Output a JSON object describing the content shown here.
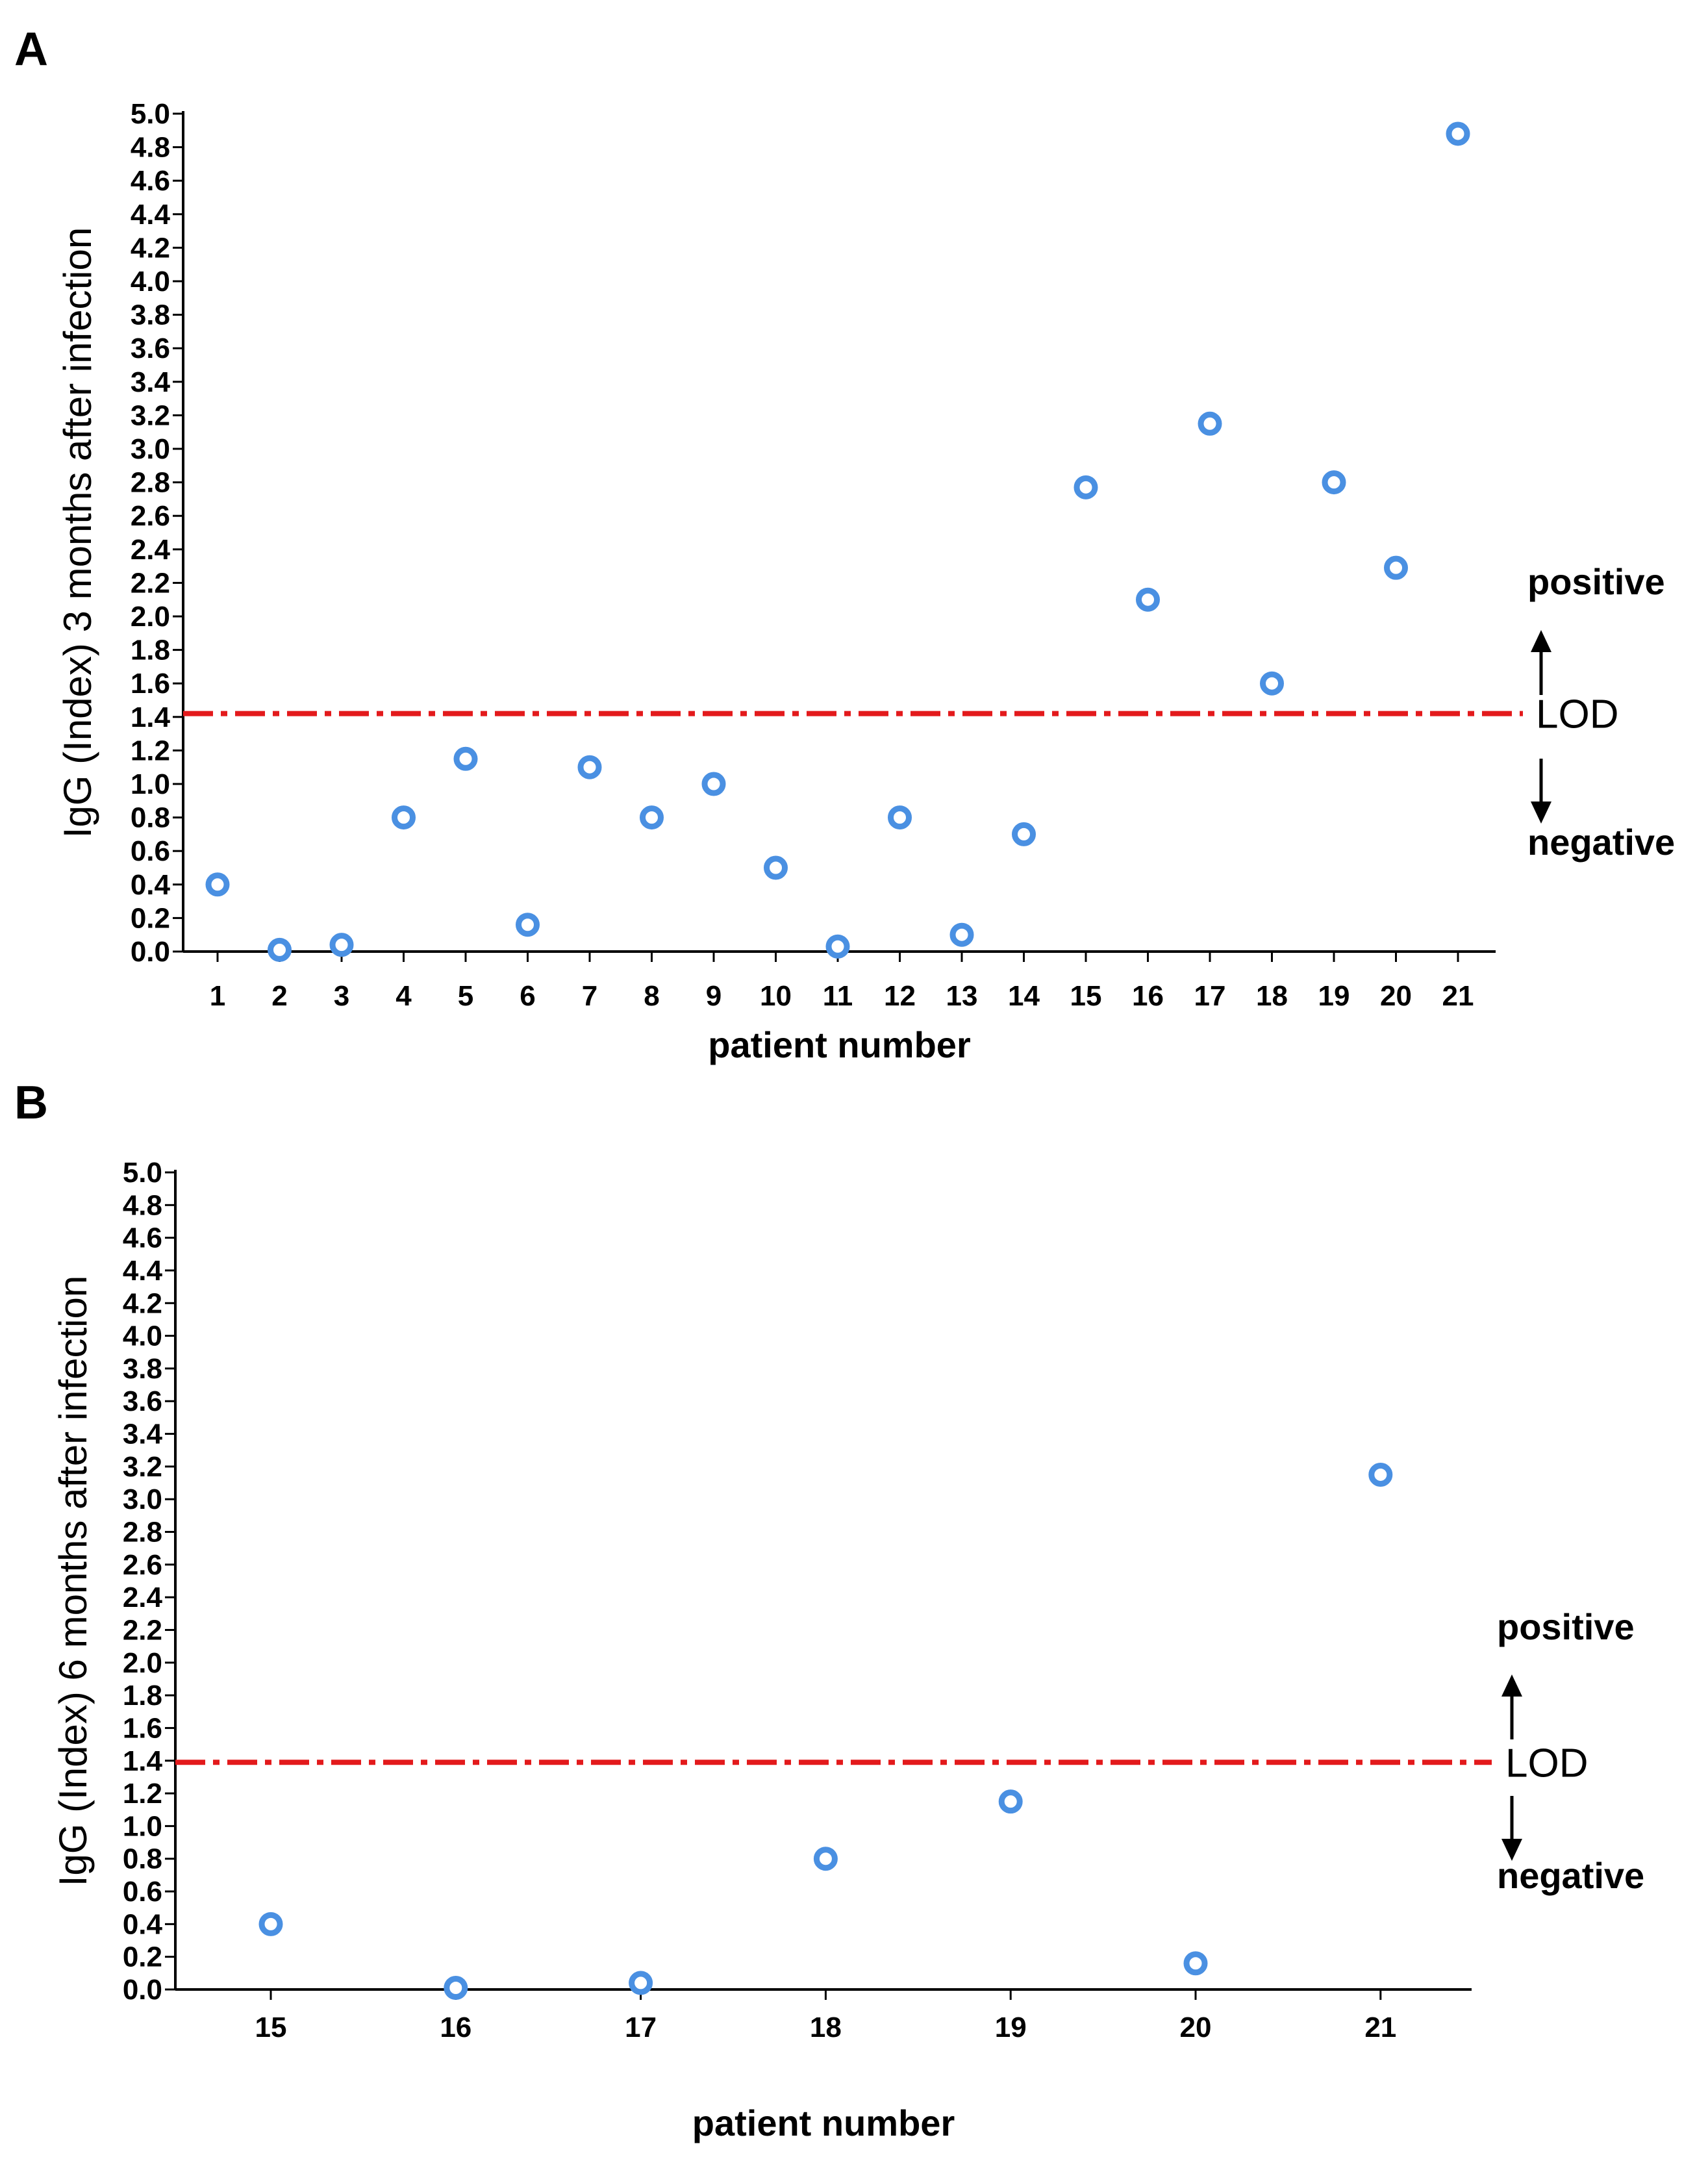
{
  "chart_data": [
    {
      "type": "scatter",
      "panel_label": "A",
      "xlabel": "patient number",
      "ylabel": "IgG (Index) 3 months after infection",
      "x": [
        1,
        2,
        3,
        4,
        5,
        6,
        7,
        8,
        9,
        10,
        11,
        12,
        13,
        14,
        15,
        16,
        17,
        18,
        19,
        20,
        21
      ],
      "y": [
        0.4,
        0.01,
        0.04,
        0.8,
        1.15,
        0.16,
        1.1,
        0.8,
        1.0,
        0.5,
        0.03,
        0.8,
        0.1,
        0.7,
        2.77,
        2.1,
        3.15,
        1.6,
        2.8,
        2.29,
        4.88
      ],
      "xticks": [
        "1",
        "2",
        "3",
        "4",
        "5",
        "6",
        "7",
        "8",
        "9",
        "10",
        "11",
        "12",
        "13",
        "14",
        "15",
        "16",
        "17",
        "18",
        "19",
        "20",
        "21"
      ],
      "ylim": [
        0,
        5.0
      ],
      "yticks": [
        "0.0",
        "0.2",
        "0.4",
        "0.6",
        "0.8",
        "1.0",
        "1.2",
        "1.4",
        "1.6",
        "1.8",
        "2.0",
        "2.2",
        "2.4",
        "2.6",
        "2.8",
        "3.0",
        "3.2",
        "3.4",
        "3.6",
        "3.8",
        "4.0",
        "4.2",
        "4.4",
        "4.6",
        "4.8",
        "5.0"
      ],
      "threshold": 1.42,
      "threshold_label": "LOD",
      "positive_label": "positive",
      "negative_label": "negative",
      "marker_color": "#4a90e2",
      "threshold_color": "#e31a1c"
    },
    {
      "type": "scatter",
      "panel_label": "B",
      "xlabel": "patient number",
      "ylabel": "IgG (Index) 6 months after infection",
      "x": [
        15,
        16,
        17,
        18,
        19,
        20,
        21
      ],
      "y": [
        0.4,
        0.01,
        0.04,
        0.8,
        1.15,
        0.16,
        3.15
      ],
      "xticks": [
        "15",
        "16",
        "17",
        "18",
        "19",
        "20",
        "21"
      ],
      "ylim": [
        0,
        5.0
      ],
      "yticks": [
        "0.0",
        "0.2",
        "0.4",
        "0.6",
        "0.8",
        "1.0",
        "1.2",
        "1.4",
        "1.6",
        "1.8",
        "2.0",
        "2.2",
        "2.4",
        "2.6",
        "2.8",
        "3.0",
        "3.2",
        "3.4",
        "3.6",
        "3.8",
        "4.0",
        "4.2",
        "4.4",
        "4.6",
        "4.8",
        "5.0"
      ],
      "threshold": 1.39,
      "threshold_label": "LOD",
      "positive_label": "positive",
      "negative_label": "negative",
      "marker_color": "#4a90e2",
      "threshold_color": "#e31a1c"
    }
  ]
}
